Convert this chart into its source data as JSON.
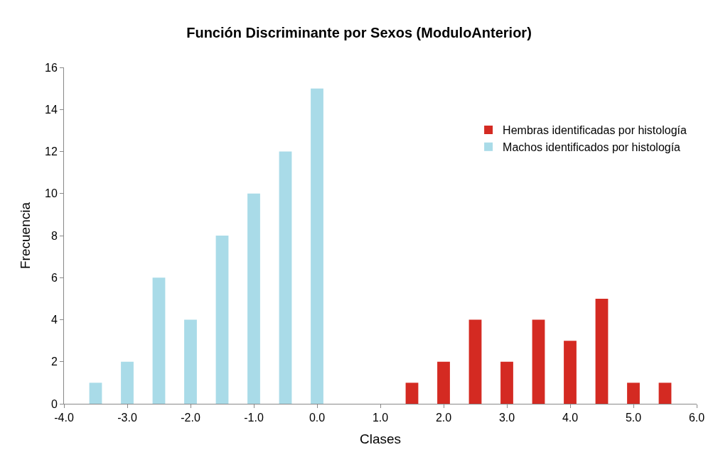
{
  "chart_data": {
    "type": "bar",
    "title": "Función Discriminante por Sexos (ModuloAnterior)",
    "xlabel": "Clases",
    "ylabel": "Frecuencia",
    "series": [
      {
        "name": "Hembras identificadas por histología",
        "color": "#d42a22",
        "x": [
          1.5,
          2.0,
          2.5,
          3.0,
          3.5,
          4.0,
          4.5,
          5.0,
          5.5
        ],
        "values": [
          1,
          2,
          4,
          2,
          4,
          3,
          5,
          1,
          1
        ]
      },
      {
        "name": "Machos identificados por histología",
        "color": "#a9dbe8",
        "x": [
          -3.5,
          -3.0,
          -2.5,
          -2.0,
          -1.5,
          -1.0,
          -0.5,
          0.0
        ],
        "values": [
          1,
          2,
          6,
          4,
          8,
          10,
          12,
          15
        ]
      }
    ],
    "xlim": [
      -4,
      6
    ],
    "xticks": [
      {
        "value": -4,
        "label": "-4.0"
      },
      {
        "value": -3,
        "label": "-3.0"
      },
      {
        "value": -2,
        "label": "-2.0"
      },
      {
        "value": -1,
        "label": "-1.0"
      },
      {
        "value": 0,
        "label": "0.0"
      },
      {
        "value": 1,
        "label": "1.0"
      },
      {
        "value": 2,
        "label": "2.0"
      },
      {
        "value": 3,
        "label": "3.0"
      },
      {
        "value": 4,
        "label": "4.0"
      },
      {
        "value": 5,
        "label": "5.0"
      },
      {
        "value": 6,
        "label": "6.0"
      }
    ],
    "ylim": [
      0,
      16
    ],
    "yticks": [
      0,
      2,
      4,
      6,
      8,
      10,
      12,
      14,
      16
    ],
    "legend": "top right"
  }
}
